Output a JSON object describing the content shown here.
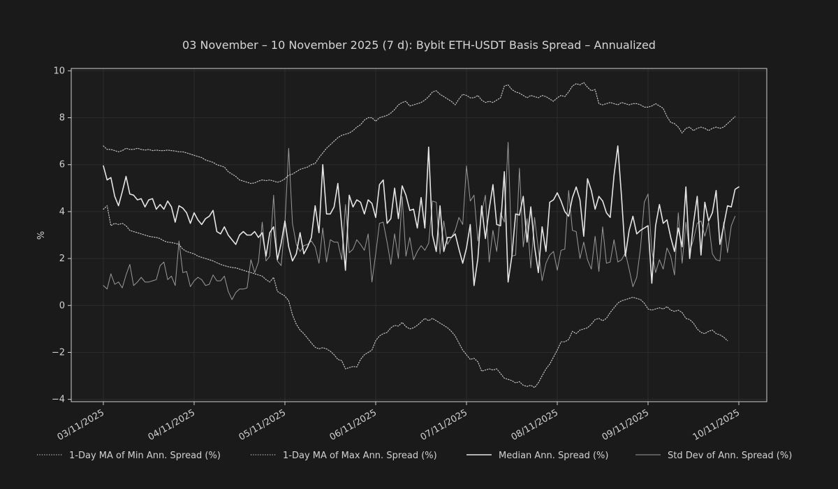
{
  "chart_data": {
    "type": "line",
    "title": "03 November – 10 November 2025 (7 d): Bybit ETH-USDT Basis Spread – Annualized",
    "xlabel": "",
    "ylabel": "%",
    "x_ticks": [
      "03/11/2025",
      "04/11/2025",
      "05/11/2025",
      "06/11/2025",
      "07/11/2025",
      "08/11/2025",
      "09/11/2025",
      "10/11/2025"
    ],
    "xlim": [
      "03/11/2025",
      "10/11/2025"
    ],
    "x_step_days": 0.0416667,
    "y_ticks": [
      -4,
      -2,
      0,
      2,
      4,
      6,
      8,
      10
    ],
    "ylim": [
      -4.1,
      10.1
    ],
    "grid": true,
    "legend_position": "bottom",
    "colors": {
      "background": "#1a1a1a",
      "axes_background": "#1c1c1c",
      "axes_border": "#cfcfcf",
      "grid": "#2c2c2c",
      "min_ma": "#c8c8c8",
      "max_ma": "#c8c8c8",
      "median": "#e6e6e6",
      "stdev": "#9a9a9a"
    },
    "series": [
      {
        "name": "1-Day MA of Min Ann. Spread (%)",
        "style": "dotted",
        "values": [
          4.1,
          4.25,
          3.4,
          3.5,
          3.45,
          3.5,
          3.4,
          3.2,
          3.15,
          3.1,
          3.05,
          3.0,
          2.95,
          2.92,
          2.9,
          2.85,
          2.75,
          2.7,
          2.68,
          2.65,
          2.6,
          2.4,
          2.3,
          2.25,
          2.2,
          2.1,
          2.05,
          2.0,
          1.95,
          1.9,
          1.82,
          1.75,
          1.7,
          1.65,
          1.62,
          1.6,
          1.55,
          1.5,
          1.45,
          1.4,
          1.35,
          1.3,
          1.25,
          1.1,
          1.0,
          1.2,
          0.6,
          0.5,
          0.4,
          0.2,
          -0.4,
          -0.8,
          -1.05,
          -1.2,
          -1.4,
          -1.6,
          -1.78,
          -1.85,
          -1.8,
          -1.85,
          -1.95,
          -2.1,
          -2.3,
          -2.35,
          -2.7,
          -2.65,
          -2.6,
          -2.62,
          -2.3,
          -2.1,
          -2.0,
          -1.9,
          -1.5,
          -1.3,
          -1.2,
          -1.15,
          -0.95,
          -0.85,
          -0.88,
          -0.72,
          -0.9,
          -1.0,
          -0.95,
          -0.85,
          -0.7,
          -0.55,
          -0.65,
          -0.55,
          -0.65,
          -0.75,
          -0.85,
          -0.95,
          -1.1,
          -1.3,
          -1.6,
          -1.9,
          -2.1,
          -2.3,
          -2.25,
          -2.4,
          -2.8,
          -2.75,
          -2.7,
          -2.75,
          -2.7,
          -2.9,
          -3.1,
          -3.15,
          -3.2,
          -3.3,
          -3.25,
          -3.4,
          -3.45,
          -3.4,
          -3.5,
          -3.3,
          -3.0,
          -2.7,
          -2.5,
          -2.2,
          -1.9,
          -1.55,
          -1.55,
          -1.45,
          -1.1,
          -1.2,
          -1.05,
          -1.0,
          -0.95,
          -0.8,
          -0.6,
          -0.55,
          -0.65,
          -0.55,
          -0.3,
          -0.1,
          0.1,
          0.2,
          0.25,
          0.3,
          0.35,
          0.3,
          0.25,
          0.1,
          -0.15,
          -0.2,
          -0.15,
          -0.1,
          -0.15,
          -0.05,
          -0.2,
          -0.25,
          -0.2,
          -0.3,
          -0.55,
          -0.6,
          -0.75,
          -1.0,
          -1.15,
          -1.2,
          -1.1,
          -1.05,
          -1.2,
          -1.25,
          -1.35,
          -1.5
        ]
      },
      {
        "name": "1-Day MA of Max Ann. Spread (%)",
        "style": "dotted",
        "values": [
          6.8,
          6.65,
          6.65,
          6.6,
          6.55,
          6.6,
          6.7,
          6.65,
          6.65,
          6.7,
          6.65,
          6.62,
          6.65,
          6.6,
          6.62,
          6.6,
          6.6,
          6.62,
          6.6,
          6.58,
          6.55,
          6.55,
          6.5,
          6.45,
          6.4,
          6.35,
          6.3,
          6.2,
          6.15,
          6.1,
          6.0,
          5.95,
          5.9,
          5.7,
          5.6,
          5.5,
          5.35,
          5.3,
          5.25,
          5.2,
          5.22,
          5.3,
          5.35,
          5.32,
          5.35,
          5.3,
          5.25,
          5.3,
          5.4,
          5.55,
          5.6,
          5.7,
          5.8,
          5.85,
          5.9,
          6.0,
          6.05,
          6.3,
          6.5,
          6.7,
          6.85,
          7.0,
          7.15,
          7.25,
          7.3,
          7.35,
          7.45,
          7.6,
          7.7,
          7.9,
          8.0,
          8.0,
          7.85,
          8.0,
          8.05,
          8.1,
          8.2,
          8.35,
          8.55,
          8.65,
          8.7,
          8.5,
          8.55,
          8.6,
          8.65,
          8.75,
          8.9,
          9.1,
          9.15,
          9.0,
          8.9,
          8.8,
          8.7,
          8.55,
          8.8,
          9.0,
          8.95,
          8.85,
          8.85,
          8.95,
          8.75,
          8.65,
          8.7,
          8.65,
          8.75,
          8.85,
          9.35,
          9.4,
          9.2,
          9.1,
          9.05,
          8.95,
          8.85,
          8.95,
          8.9,
          8.85,
          8.95,
          8.9,
          8.8,
          8.7,
          8.85,
          8.95,
          8.9,
          9.1,
          9.35,
          9.45,
          9.4,
          9.5,
          9.3,
          9.15,
          9.2,
          8.6,
          8.55,
          8.6,
          8.65,
          8.6,
          8.55,
          8.65,
          8.6,
          8.55,
          8.6,
          8.6,
          8.55,
          8.45,
          8.45,
          8.5,
          8.6,
          8.5,
          8.4,
          8.05,
          7.8,
          7.75,
          7.6,
          7.35,
          7.55,
          7.6,
          7.45,
          7.55,
          7.6,
          7.55,
          7.45,
          7.55,
          7.6,
          7.55,
          7.6,
          7.75,
          7.9,
          8.05
        ]
      },
      {
        "name": "Median Ann. Spread (%)",
        "style": "solid",
        "values": [
          5.95,
          5.35,
          5.45,
          4.65,
          4.25,
          4.85,
          5.5,
          4.75,
          4.7,
          4.5,
          4.55,
          4.2,
          4.5,
          4.55,
          4.1,
          4.3,
          4.1,
          4.45,
          4.2,
          3.55,
          4.25,
          4.15,
          3.95,
          3.5,
          3.95,
          3.65,
          3.45,
          3.7,
          3.8,
          4.05,
          3.15,
          3.05,
          3.35,
          3.0,
          2.8,
          2.6,
          3.0,
          3.15,
          3.0,
          3.0,
          3.15,
          2.9,
          3.1,
          2.1,
          3.1,
          3.35,
          1.95,
          2.65,
          3.6,
          2.5,
          1.9,
          2.2,
          3.1,
          2.2,
          2.5,
          2.9,
          4.25,
          3.1,
          6.0,
          3.9,
          3.9,
          4.2,
          5.2,
          3.4,
          1.5,
          4.7,
          4.2,
          4.5,
          4.4,
          3.9,
          4.5,
          4.35,
          3.75,
          5.15,
          5.35,
          3.5,
          3.7,
          5.0,
          3.7,
          5.1,
          4.7,
          4.05,
          4.1,
          3.3,
          4.6,
          3.3,
          6.75,
          3.0,
          2.3,
          4.25,
          2.3,
          2.9,
          2.9,
          3.05,
          2.4,
          1.8,
          2.45,
          3.45,
          0.85,
          2.0,
          4.25,
          2.85,
          4.1,
          5.15,
          3.45,
          3.4,
          5.7,
          1.0,
          2.1,
          3.9,
          3.85,
          4.65,
          2.7,
          4.2,
          2.5,
          1.4,
          3.35,
          2.3,
          4.4,
          4.5,
          4.8,
          4.45,
          4.0,
          3.8,
          4.6,
          5.05,
          4.5,
          2.95,
          5.4,
          4.9,
          4.1,
          4.65,
          4.45,
          3.95,
          3.75,
          5.55,
          6.8,
          4.6,
          2.1,
          3.2,
          3.8,
          3.05,
          3.2,
          3.3,
          3.4,
          0.95,
          3.4,
          4.3,
          3.5,
          3.65,
          2.9,
          2.3,
          3.3,
          2.5,
          5.05,
          2.0,
          3.5,
          4.65,
          2.15,
          4.4,
          3.6,
          3.95,
          4.9,
          2.6,
          3.4,
          4.25,
          4.2,
          4.95,
          5.05
        ]
      },
      {
        "name": "Std Dev of Ann. Spread (%)",
        "style": "solid",
        "values": [
          0.85,
          0.7,
          1.35,
          0.9,
          1.0,
          0.75,
          1.3,
          1.75,
          0.85,
          1.0,
          1.2,
          1.0,
          1.0,
          1.05,
          1.1,
          1.7,
          1.85,
          1.1,
          1.25,
          0.85,
          2.75,
          1.4,
          1.45,
          0.8,
          1.05,
          1.2,
          1.1,
          0.85,
          0.9,
          1.3,
          1.05,
          1.05,
          1.25,
          0.6,
          0.25,
          0.55,
          0.7,
          0.7,
          0.75,
          1.95,
          1.4,
          1.85,
          3.55,
          1.9,
          2.1,
          4.7,
          1.9,
          1.7,
          3.5,
          6.7,
          3.5,
          2.6,
          2.3,
          2.55,
          2.6,
          2.75,
          2.5,
          1.8,
          3.3,
          1.85,
          2.8,
          2.7,
          2.7,
          1.95,
          4.3,
          2.25,
          2.4,
          2.8,
          2.6,
          2.35,
          3.05,
          1.0,
          2.2,
          3.5,
          3.55,
          2.7,
          1.75,
          3.05,
          2.0,
          4.65,
          2.1,
          2.9,
          1.95,
          2.3,
          2.55,
          2.35,
          2.65,
          4.45,
          4.4,
          2.2,
          3.6,
          2.6,
          2.9,
          3.2,
          3.75,
          3.45,
          5.95,
          4.45,
          4.7,
          2.75,
          3.95,
          4.7,
          1.85,
          3.2,
          2.3,
          3.95,
          3.55,
          6.95,
          2.1,
          2.15,
          5.85,
          2.5,
          3.7,
          1.6,
          3.75,
          2.4,
          1.05,
          1.8,
          2.15,
          2.3,
          1.5,
          2.35,
          2.4,
          4.9,
          3.2,
          3.15,
          2.0,
          2.7,
          1.95,
          1.55,
          2.95,
          1.45,
          3.35,
          1.8,
          1.85,
          2.8,
          1.85,
          1.95,
          2.25,
          1.55,
          0.8,
          1.2,
          2.45,
          4.4,
          4.75,
          2.35,
          1.4,
          1.95,
          1.55,
          2.45,
          2.1,
          1.3,
          3.95,
          1.8,
          3.55,
          2.3,
          2.8,
          3.5,
          3.6,
          2.95,
          3.55,
          2.2,
          1.95,
          1.9,
          3.55,
          2.25,
          3.4,
          3.8
        ]
      }
    ]
  }
}
